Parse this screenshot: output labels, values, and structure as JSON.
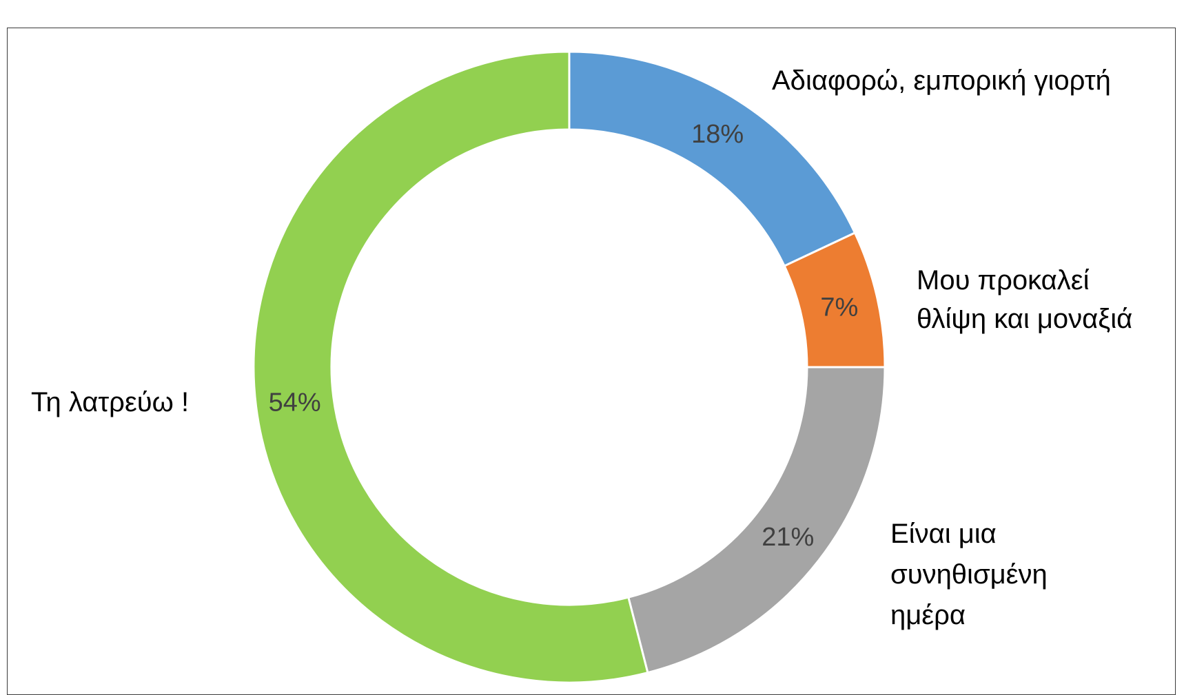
{
  "chart_data": {
    "type": "pie",
    "subtype": "doughnut",
    "categories": [
      "Αδιαφορώ, εμπορική γιορτή",
      "Μου προκαλεί θλίψη και μοναξιά",
      "Είναι μια συνηθισμένη ημέρα",
      "Τη λατρεύω !"
    ],
    "values": [
      18,
      7,
      21,
      54
    ],
    "data_labels": [
      "18%",
      "7%",
      "21%",
      "54%"
    ],
    "colors": [
      "#5b9bd5",
      "#ed7d31",
      "#a5a5a5",
      "#92d050"
    ],
    "category_label_lines": [
      [
        "Αδιαφορώ, εμπορική γιορτή"
      ],
      [
        "Μου προκαλεί",
        "θλίψη και μοναξιά"
      ],
      [
        "Είναι μια",
        "συνηθισμένη",
        "ημέρα"
      ],
      [
        "Τη λατρεύω !"
      ]
    ],
    "start_angle_deg": 0,
    "direction": "clockwise",
    "legend": "none"
  }
}
